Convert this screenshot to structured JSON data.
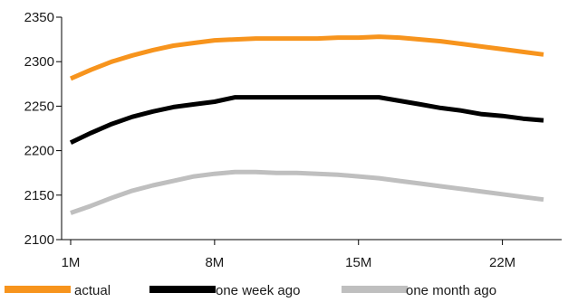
{
  "chart_data": {
    "type": "line",
    "x": [
      "1M",
      "2M",
      "3M",
      "4M",
      "5M",
      "6M",
      "7M",
      "8M",
      "9M",
      "10M",
      "11M",
      "12M",
      "13M",
      "14M",
      "15M",
      "16M",
      "17M",
      "18M",
      "19M",
      "20M",
      "21M",
      "22M",
      "23M",
      "24M"
    ],
    "x_tick_labels": [
      "1M",
      "8M",
      "15M",
      "22M"
    ],
    "y_tick_labels": [
      "2100",
      "2150",
      "2200",
      "2250",
      "2300",
      "2350"
    ],
    "ylim": [
      2100,
      2350
    ],
    "grid": false,
    "legend_position": "bottom",
    "series": [
      {
        "name": "actual",
        "color": "#f7941d",
        "values": [
          2281,
          2291,
          2300,
          2307,
          2313,
          2318,
          2321,
          2324,
          2325,
          2326,
          2326,
          2326,
          2326,
          2327,
          2327,
          2328,
          2327,
          2325,
          2323,
          2320,
          2317,
          2314,
          2311,
          2308
        ]
      },
      {
        "name": "one week ago",
        "color": "#000000",
        "values": [
          2209,
          2220,
          2230,
          2238,
          2244,
          2249,
          2252,
          2255,
          2260,
          2260,
          2260,
          2260,
          2260,
          2260,
          2260,
          2260,
          2256,
          2252,
          2248,
          2245,
          2241,
          2239,
          2236,
          2234
        ]
      },
      {
        "name": "one month ago",
        "color": "#bfbfbf",
        "values": [
          2130,
          2138,
          2147,
          2155,
          2161,
          2166,
          2171,
          2174,
          2176,
          2176,
          2175,
          2175,
          2174,
          2173,
          2171,
          2169,
          2166,
          2163,
          2160,
          2157,
          2154,
          2151,
          2148,
          2145
        ]
      }
    ]
  }
}
